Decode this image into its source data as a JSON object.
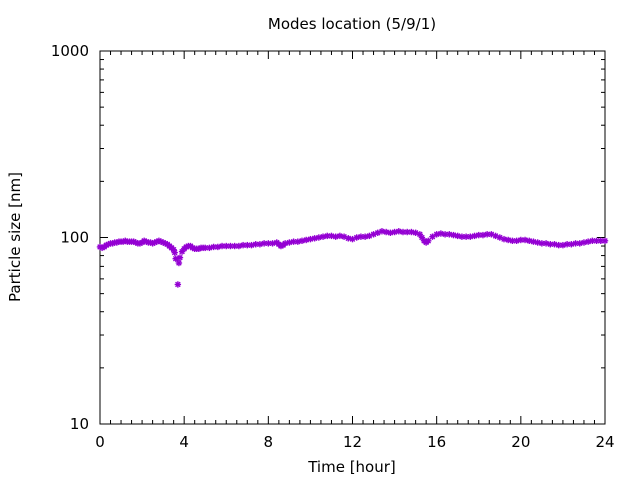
{
  "chart_data": {
    "type": "scatter",
    "title": "Modes location (5/9/1)",
    "xlabel": "Time [hour]",
    "ylabel": "Particle size [nm]",
    "xlim": [
      0,
      24
    ],
    "ylim": [
      10,
      1000
    ],
    "yscale": "log",
    "grid": false,
    "legend": "none",
    "marker_color": "#9400d3",
    "x_ticks": [
      "0",
      "4",
      "8",
      "12",
      "16",
      "20",
      "24"
    ],
    "y_ticks": [
      "10",
      "100",
      "1000"
    ],
    "series": [
      {
        "points": [
          [
            0.0,
            89
          ],
          [
            0.1,
            88
          ],
          [
            0.2,
            89
          ],
          [
            0.3,
            91
          ],
          [
            0.4,
            92
          ],
          [
            0.5,
            93
          ],
          [
            0.6,
            93
          ],
          [
            0.7,
            94
          ],
          [
            0.8,
            94
          ],
          [
            0.9,
            95
          ],
          [
            1.0,
            95
          ],
          [
            1.1,
            95
          ],
          [
            1.2,
            96
          ],
          [
            1.3,
            95
          ],
          [
            1.4,
            95
          ],
          [
            1.5,
            95
          ],
          [
            1.6,
            95
          ],
          [
            1.7,
            94
          ],
          [
            1.8,
            93
          ],
          [
            1.9,
            93
          ],
          [
            2.0,
            94
          ],
          [
            2.1,
            96
          ],
          [
            2.2,
            95
          ],
          [
            2.3,
            94
          ],
          [
            2.4,
            94
          ],
          [
            2.5,
            93
          ],
          [
            2.6,
            94
          ],
          [
            2.7,
            95
          ],
          [
            2.8,
            96
          ],
          [
            2.9,
            95
          ],
          [
            3.0,
            94
          ],
          [
            3.1,
            93
          ],
          [
            3.2,
            92
          ],
          [
            3.3,
            90
          ],
          [
            3.4,
            88
          ],
          [
            3.5,
            86
          ],
          [
            3.55,
            83
          ],
          [
            3.6,
            77
          ],
          [
            3.7,
            56
          ],
          [
            3.75,
            73
          ],
          [
            3.8,
            78
          ],
          [
            3.9,
            84
          ],
          [
            4.0,
            87
          ],
          [
            4.1,
            89
          ],
          [
            4.2,
            90
          ],
          [
            4.3,
            90
          ],
          [
            4.4,
            88
          ],
          [
            4.5,
            87
          ],
          [
            4.6,
            87
          ],
          [
            4.7,
            87
          ],
          [
            4.8,
            88
          ],
          [
            4.9,
            88
          ],
          [
            5.0,
            88
          ],
          [
            5.2,
            88
          ],
          [
            5.4,
            89
          ],
          [
            5.6,
            89
          ],
          [
            5.8,
            90
          ],
          [
            6.0,
            90
          ],
          [
            6.2,
            90
          ],
          [
            6.4,
            90
          ],
          [
            6.6,
            90
          ],
          [
            6.8,
            91
          ],
          [
            7.0,
            91
          ],
          [
            7.2,
            91
          ],
          [
            7.4,
            92
          ],
          [
            7.6,
            92
          ],
          [
            7.8,
            93
          ],
          [
            8.0,
            93
          ],
          [
            8.2,
            93
          ],
          [
            8.4,
            94
          ],
          [
            8.5,
            92
          ],
          [
            8.6,
            90
          ],
          [
            8.7,
            91
          ],
          [
            8.8,
            93
          ],
          [
            9.0,
            94
          ],
          [
            9.2,
            95
          ],
          [
            9.4,
            95
          ],
          [
            9.6,
            96
          ],
          [
            9.8,
            97
          ],
          [
            10.0,
            98
          ],
          [
            10.2,
            99
          ],
          [
            10.4,
            100
          ],
          [
            10.6,
            101
          ],
          [
            10.8,
            102
          ],
          [
            11.0,
            102
          ],
          [
            11.2,
            101
          ],
          [
            11.4,
            102
          ],
          [
            11.6,
            101
          ],
          [
            11.8,
            99
          ],
          [
            12.0,
            98
          ],
          [
            12.2,
            100
          ],
          [
            12.4,
            101
          ],
          [
            12.6,
            101
          ],
          [
            12.8,
            102
          ],
          [
            13.0,
            104
          ],
          [
            13.2,
            106
          ],
          [
            13.4,
            108
          ],
          [
            13.6,
            107
          ],
          [
            13.8,
            106
          ],
          [
            14.0,
            107
          ],
          [
            14.2,
            108
          ],
          [
            14.4,
            107
          ],
          [
            14.6,
            107
          ],
          [
            14.8,
            107
          ],
          [
            15.0,
            106
          ],
          [
            15.2,
            104
          ],
          [
            15.3,
            100
          ],
          [
            15.4,
            96
          ],
          [
            15.5,
            94
          ],
          [
            15.6,
            96
          ],
          [
            15.8,
            101
          ],
          [
            16.0,
            104
          ],
          [
            16.2,
            105
          ],
          [
            16.4,
            104
          ],
          [
            16.6,
            104
          ],
          [
            16.8,
            103
          ],
          [
            17.0,
            102
          ],
          [
            17.2,
            101
          ],
          [
            17.4,
            101
          ],
          [
            17.6,
            101
          ],
          [
            17.8,
            102
          ],
          [
            18.0,
            103
          ],
          [
            18.2,
            103
          ],
          [
            18.4,
            104
          ],
          [
            18.6,
            104
          ],
          [
            18.8,
            102
          ],
          [
            19.0,
            100
          ],
          [
            19.2,
            98
          ],
          [
            19.4,
            97
          ],
          [
            19.6,
            96
          ],
          [
            19.8,
            96
          ],
          [
            20.0,
            97
          ],
          [
            20.2,
            97
          ],
          [
            20.4,
            96
          ],
          [
            20.6,
            95
          ],
          [
            20.8,
            94
          ],
          [
            21.0,
            93
          ],
          [
            21.2,
            93
          ],
          [
            21.4,
            92
          ],
          [
            21.6,
            92
          ],
          [
            21.8,
            91
          ],
          [
            22.0,
            91
          ],
          [
            22.2,
            92
          ],
          [
            22.4,
            92
          ],
          [
            22.6,
            93
          ],
          [
            22.8,
            93
          ],
          [
            23.0,
            94
          ],
          [
            23.2,
            95
          ],
          [
            23.4,
            96
          ],
          [
            23.6,
            96
          ],
          [
            23.8,
            96
          ],
          [
            24.0,
            96
          ]
        ]
      }
    ]
  }
}
